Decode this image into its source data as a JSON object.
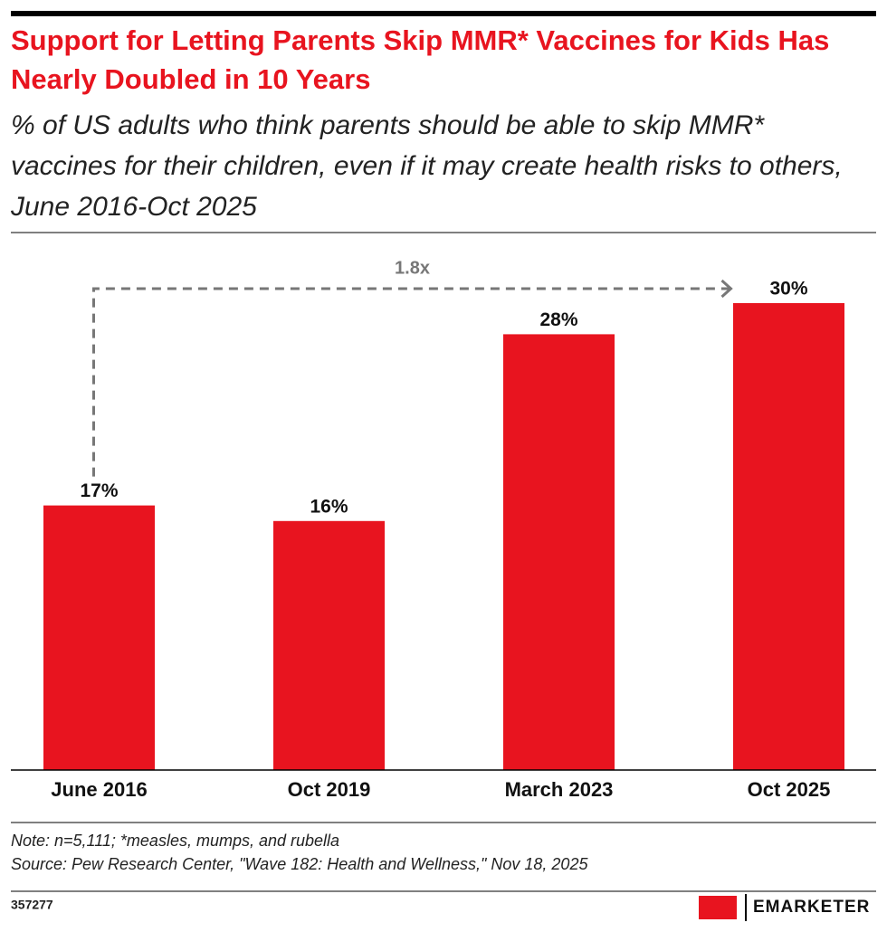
{
  "chart_data": {
    "type": "bar",
    "title": "Support for Letting Parents Skip MMR* Vaccines for Kids Has Nearly Doubled in 10 Years",
    "subtitle": "% of US adults who think parents should be able to skip MMR* vaccines for their children, even if it may create health risks to others, June 2016-Oct 2025",
    "categories": [
      "June 2016",
      "Oct 2019",
      "March 2023",
      "Oct 2025"
    ],
    "values": [
      17,
      16,
      28,
      30
    ],
    "value_labels": [
      "17%",
      "16%",
      "28%",
      "30%"
    ],
    "color": "#e8141f",
    "annotation": "1.8x",
    "note": "Note: n=5,111; *measles, mumps, and rubella",
    "source": "Source: Pew Research Center, \"Wave 182: Health and Wellness,\" Nov 18, 2025",
    "chart_id": "357277",
    "brand": "EMARKETER"
  }
}
